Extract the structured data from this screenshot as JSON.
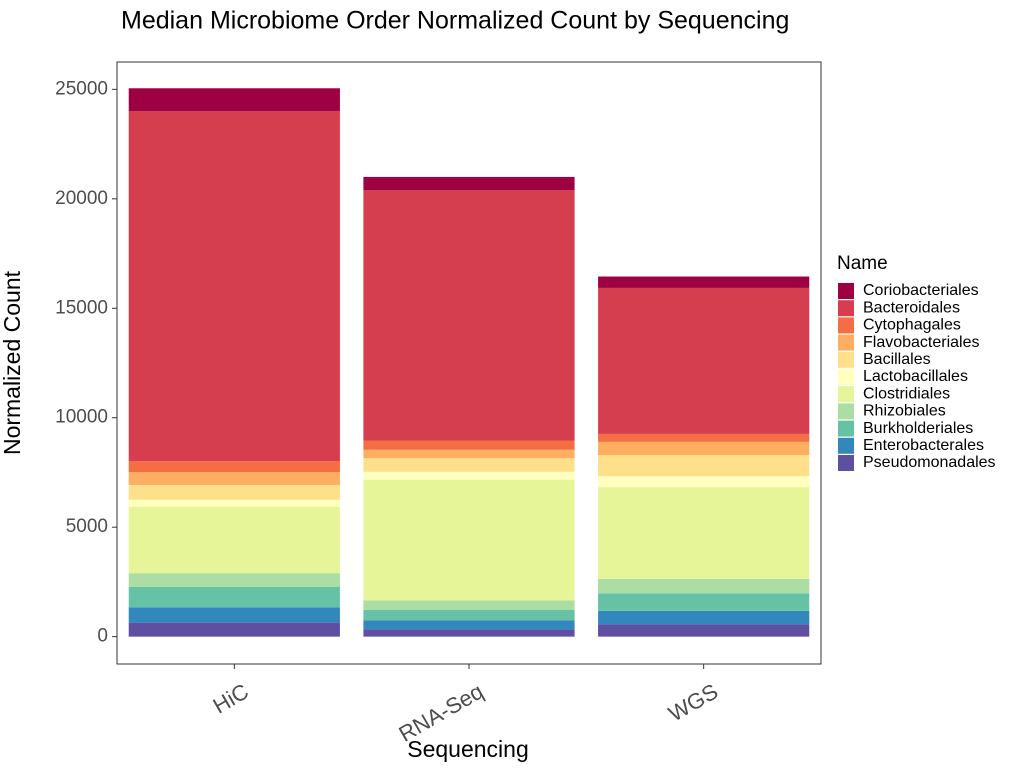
{
  "chart_data": {
    "type": "bar",
    "stacked": true,
    "title": "Median Microbiome Order Normalized Count by Sequencing",
    "xlabel": "Sequencing",
    "ylabel": "Normalized Count",
    "categories": [
      "HiC",
      "RNA-Seq",
      "WGS"
    ],
    "ylim": [
      -1250,
      26250
    ],
    "yticks": [
      0,
      5000,
      10000,
      15000,
      20000,
      25000
    ],
    "grid": false,
    "legend": {
      "title": "Name",
      "position": "right"
    },
    "series": [
      {
        "name": "Pseudomonadales",
        "color": "#5E4FA2",
        "values": [
          640,
          330,
          560
        ]
      },
      {
        "name": "Enterobacterales",
        "color": "#3288BD",
        "values": [
          700,
          420,
          620
        ]
      },
      {
        "name": "Burkholderiales",
        "color": "#66C2A5",
        "values": [
          940,
          480,
          800
        ]
      },
      {
        "name": "Rhizobiales",
        "color": "#ABDDA4",
        "values": [
          620,
          420,
          660
        ]
      },
      {
        "name": "Clostridiales",
        "color": "#E6F598",
        "values": [
          3030,
          5520,
          4190
        ]
      },
      {
        "name": "Lactobacillales",
        "color": "#FFFFBF",
        "values": [
          320,
          360,
          500
        ]
      },
      {
        "name": "Bacillales",
        "color": "#FEE08B",
        "values": [
          680,
          620,
          960
        ]
      },
      {
        "name": "Flavobacteriales",
        "color": "#FDAE61",
        "values": [
          590,
          390,
          610
        ]
      },
      {
        "name": "Cytophagales",
        "color": "#F46D43",
        "values": [
          500,
          420,
          360
        ]
      },
      {
        "name": "Bacteroidales",
        "color": "#D53E4F",
        "values": [
          15980,
          11430,
          6670
        ]
      },
      {
        "name": "Coriobacteriales",
        "color": "#9E0142",
        "values": [
          1050,
          610,
          520
        ]
      }
    ],
    "legend_order": [
      "Coriobacteriales",
      "Bacteroidales",
      "Cytophagales",
      "Flavobacteriales",
      "Bacillales",
      "Lactobacillales",
      "Clostridiales",
      "Rhizobiales",
      "Burkholderiales",
      "Enterobacterales",
      "Pseudomonadales"
    ]
  }
}
